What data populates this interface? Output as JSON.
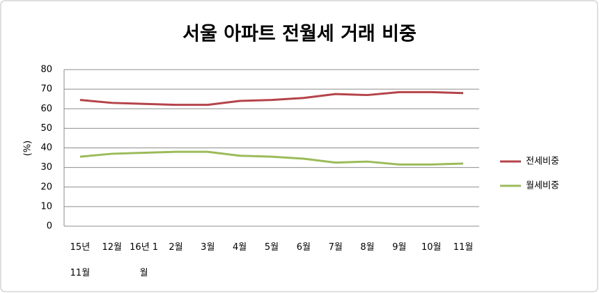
{
  "chart_data": {
    "type": "line",
    "title": "서울 아파트 전월세 거래 비중",
    "y_label": "(%)",
    "categories": [
      "15년 11월",
      "12월",
      "16년 1월",
      "2월",
      "3월",
      "4월",
      "5월",
      "6월",
      "7월",
      "8월",
      "9월",
      "10월",
      "11월"
    ],
    "series": [
      {
        "name": "전세비중",
        "color": "#b5434a",
        "values": [
          64.5,
          63,
          62.5,
          62,
          62,
          64,
          64.5,
          65.5,
          67.5,
          67,
          68.5,
          68.5,
          68
        ]
      },
      {
        "name": "월세비중",
        "color": "#9bbb59",
        "values": [
          35.5,
          37,
          37.5,
          38,
          38,
          36,
          35.5,
          34.5,
          32.5,
          33,
          31.5,
          31.5,
          32
        ]
      }
    ],
    "ylim": [
      0,
      80
    ],
    "yticks": [
      0,
      10,
      20,
      30,
      40,
      50,
      60,
      70,
      80
    ],
    "grid": true,
    "legend": "right"
  }
}
